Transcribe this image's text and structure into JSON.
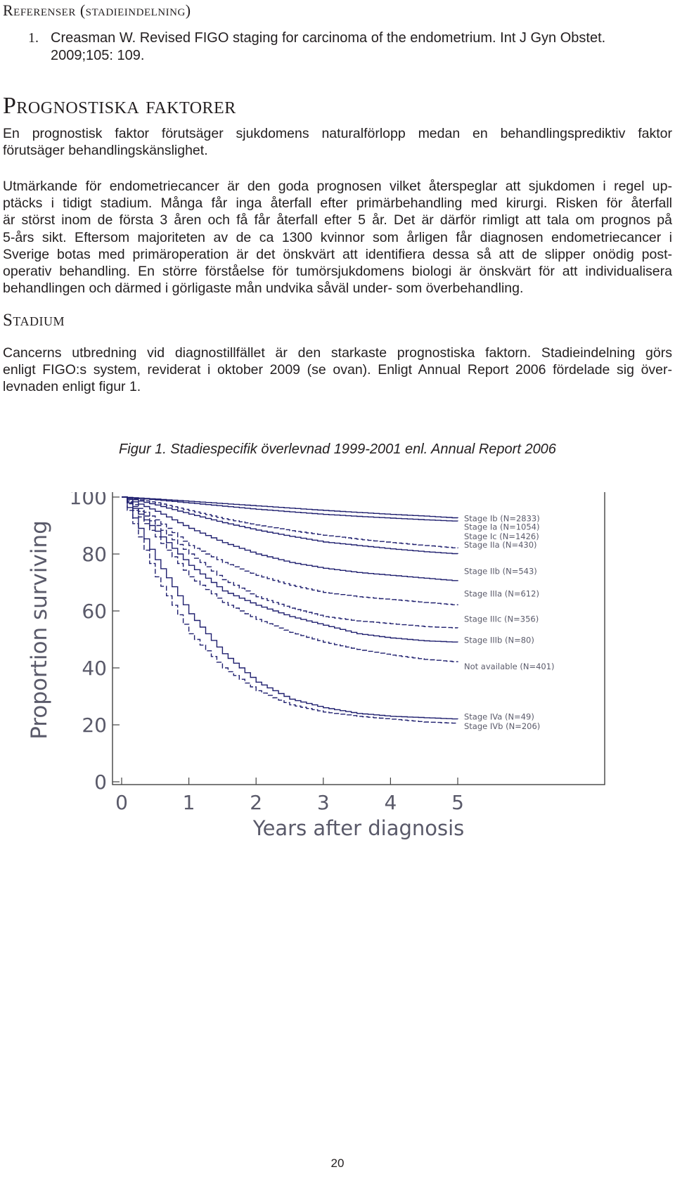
{
  "references": {
    "heading": "Referenser (stadieindelning)",
    "items": [
      {
        "num": "1.",
        "lines": [
          "Creasman W. Revised FIGO staging for carcinoma of the endometrium. Int J Gyn Obstet.",
          "2009;105: 109."
        ]
      }
    ]
  },
  "prognostic": {
    "heading": "Prognostiska faktorer",
    "para1": [
      "En prognostisk faktor förutsäger sjukdomens naturalförlopp medan en behandlingsprediktiv faktor",
      "förutsäger behandlingskänslighet."
    ],
    "para2": [
      "Utmärkande för endometriecancer är den goda prognosen vilket återspeglar att sjukdomen i regel up-",
      "ptäcks i tidigt stadium. Många får inga återfall efter primärbehandling med kirurgi. Risken för återfall",
      "är störst inom de första 3 åren och få får återfall efter 5 år. Det är därför rimligt att tala om prognos på",
      "5-års sikt. Eftersom majoriteten av de ca 1300 kvinnor som årligen får diagnosen endometriecancer i",
      "Sverige botas med primäroperation är det önskvärt att identifiera dessa så att de slipper onödig post-",
      "operativ behandling. En större förståelse för tumörsjukdomens biologi är önskvärt för att individualisera",
      "behandlingen och därmed i görligaste mån undvika såväl under- som överbehandling."
    ]
  },
  "stadium": {
    "heading": "Stadium",
    "para": [
      "Cancerns utbredning vid diagnostillfället är den starkaste prognostiska faktorn. Stadieindelning görs",
      "enligt FIGO:s system, reviderat i oktober 2009 (se ovan). Enligt Annual Report 2006 fördelade sig över-",
      "levnaden enligt figur 1."
    ]
  },
  "figure": {
    "caption": "Figur 1. Stadiespecifik överlevnad 1999-2001 enl. Annual Report 2006"
  },
  "chart_data": {
    "type": "line",
    "xlabel": "Years after diagnosis",
    "ylabel": "Proportion surviving",
    "xlim": [
      0,
      5
    ],
    "ylim": [
      0,
      100
    ],
    "x_ticks": [
      "0",
      "1",
      "2",
      "3",
      "4",
      "5"
    ],
    "y_ticks": [
      "0",
      "20",
      "40",
      "60",
      "80",
      "100"
    ],
    "grid": false,
    "legend_placement": "right, labels at line ends",
    "line_color": "#1e1e6e",
    "series": [
      {
        "name": "Stage Ib (N=2833)",
        "style": "solid",
        "x": [
          0,
          0.5,
          1,
          1.5,
          2,
          2.5,
          3,
          3.5,
          4,
          4.5,
          5
        ],
        "y": [
          100,
          99.3,
          98.5,
          97.7,
          96.9,
          96.1,
          95.3,
          94.6,
          93.9,
          93.3,
          92.6
        ]
      },
      {
        "name": "Stage Ia (N=1054)",
        "style": "solid",
        "x": [
          0,
          0.5,
          1,
          1.5,
          2,
          2.5,
          3,
          3.5,
          4,
          4.5,
          5
        ],
        "y": [
          100,
          99.0,
          97.9,
          96.8,
          95.7,
          94.8,
          93.9,
          93.2,
          92.6,
          92.0,
          91.5
        ]
      },
      {
        "name": "Stage Ic (N=1426)",
        "style": "dashed",
        "x": [
          0,
          0.5,
          1,
          1.5,
          2,
          2.5,
          3,
          3.5,
          4,
          4.5,
          5
        ],
        "y": [
          100,
          98.0,
          95.2,
          92.4,
          90.2,
          88.2,
          86.6,
          85.2,
          84.0,
          83.0,
          82.0
        ]
      },
      {
        "name": "Stage IIa (N=430)",
        "style": "solid",
        "x": [
          0,
          0.5,
          1,
          1.5,
          2,
          2.5,
          3,
          3.5,
          4,
          4.5,
          5
        ],
        "y": [
          100,
          97.2,
          94.0,
          91.0,
          88.4,
          86.2,
          84.2,
          83.0,
          81.8,
          80.8,
          80.0
        ]
      },
      {
        "name": "Stage IIb (N=543)",
        "style": "solid",
        "x": [
          0,
          0.5,
          1,
          1.5,
          2,
          2.5,
          3,
          3.5,
          4,
          4.5,
          5
        ],
        "y": [
          100,
          95.0,
          89.0,
          84.0,
          80.0,
          77.0,
          75.0,
          73.5,
          72.5,
          71.5,
          70.5
        ]
      },
      {
        "name": "Stage IIIa (N=612)",
        "style": "dashed",
        "x": [
          0,
          0.5,
          1,
          1.5,
          2,
          2.5,
          3,
          3.5,
          4,
          4.5,
          5
        ],
        "y": [
          100,
          92.0,
          83.0,
          77.0,
          72.5,
          69.0,
          66.5,
          65.0,
          64.0,
          63.0,
          62.0
        ]
      },
      {
        "name": "Stage IIIc (N=356)",
        "style": "dashed",
        "x": [
          0,
          0.5,
          1,
          1.5,
          2,
          2.5,
          3,
          3.5,
          4,
          4.5,
          5
        ],
        "y": [
          100,
          90.0,
          80.0,
          71.0,
          65.0,
          61.0,
          58.0,
          56.5,
          55.5,
          54.5,
          54.0
        ]
      },
      {
        "name": "Stage IIIb (N=80)",
        "style": "solid",
        "x": [
          0,
          0.5,
          1,
          1.5,
          2,
          2.5,
          3,
          3.5,
          4,
          4.5,
          5
        ],
        "y": [
          100,
          88.0,
          76.0,
          67.0,
          62.0,
          58.0,
          55.0,
          52.0,
          50.5,
          49.5,
          49.0
        ]
      },
      {
        "name": "Not available (N=401)",
        "style": "dashed",
        "x": [
          0,
          0.5,
          1,
          1.5,
          2,
          2.5,
          3,
          3.5,
          4,
          4.5,
          5
        ],
        "y": [
          100,
          86.0,
          72.0,
          63.0,
          57.0,
          52.5,
          49.0,
          46.5,
          44.5,
          43.0,
          42.0
        ]
      },
      {
        "name": "Stage IVa (N=49)",
        "style": "solid",
        "x": [
          0,
          0.5,
          1,
          1.5,
          2,
          2.5,
          3,
          3.5,
          4,
          4.5,
          5
        ],
        "y": [
          100,
          78.0,
          59.0,
          45.0,
          35.0,
          29.0,
          26.0,
          24.0,
          23.0,
          22.5,
          22.0
        ]
      },
      {
        "name": "Stage IVb (N=206)",
        "style": "dashed",
        "x": [
          0,
          0.5,
          1,
          1.5,
          2,
          2.5,
          3,
          3.5,
          4,
          4.5,
          5
        ],
        "y": [
          100,
          72.0,
          52.0,
          40.0,
          32.0,
          27.0,
          24.5,
          23.0,
          22.0,
          21.0,
          20.5
        ]
      }
    ],
    "label_y": [
      92.5,
      89.5,
      86.2,
      83.2,
      74.0,
      66.0,
      57.2,
      49.8,
      40.5,
      22.8,
      19.5
    ]
  },
  "footer": {
    "page_number": "20"
  }
}
